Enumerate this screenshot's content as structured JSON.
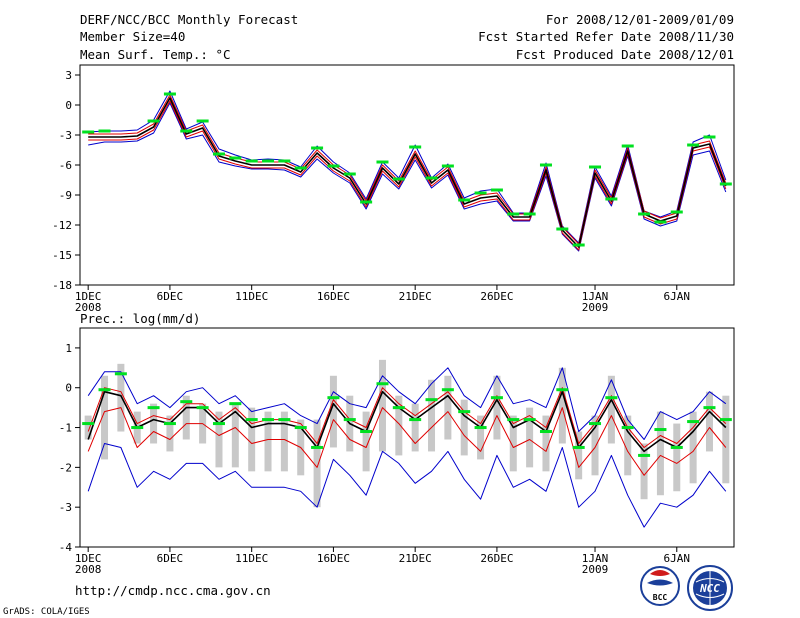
{
  "header": {
    "title": "DERF/NCC/BCC Monthly Forecast",
    "member_size": "Member Size=40",
    "period": "For 2008/12/01-2009/01/09",
    "start_date": "Fcst Started Refer Date 2008/11/30",
    "produced_date": "Fcst Produced Date 2008/12/01"
  },
  "footer": {
    "url": "http://cmdp.ncc.cma.gov.cn",
    "credit": "GrADS: COLA/IGES",
    "logo_bcc": "BCC",
    "logo_ncc": "NCC"
  },
  "colors": {
    "mean": "#000000",
    "spread": "#e00000",
    "extreme": "#0000cc",
    "member": "#00e020",
    "box": "#c8c8c8"
  },
  "chart_data": [
    {
      "type": "line",
      "title": "Mean Surf. Temp.: °C",
      "xlabel": "",
      "ylabel": "°C",
      "ylim": [
        -18,
        4
      ],
      "yticks": [
        3,
        0,
        -3,
        -6,
        -9,
        -12,
        -15,
        -18
      ],
      "xlim": [
        0.5,
        40.5
      ],
      "xticks": [
        {
          "day": 1,
          "label": "1DEC",
          "sub": "2008"
        },
        {
          "day": 6,
          "label": "6DEC"
        },
        {
          "day": 11,
          "label": "11DEC"
        },
        {
          "day": 16,
          "label": "16DEC"
        },
        {
          "day": 21,
          "label": "21DEC"
        },
        {
          "day": 26,
          "label": "26DEC"
        },
        {
          "day": 32,
          "label": "1JAN",
          "sub": "2009"
        },
        {
          "day": 37,
          "label": "6JAN"
        }
      ],
      "x": [
        1,
        2,
        3,
        4,
        5,
        6,
        7,
        8,
        9,
        10,
        11,
        12,
        13,
        14,
        15,
        16,
        17,
        18,
        19,
        20,
        21,
        22,
        23,
        24,
        25,
        26,
        27,
        28,
        29,
        30,
        31,
        32,
        33,
        34,
        35,
        36,
        37,
        38,
        39,
        40
      ],
      "series": [
        {
          "name": "ensemble mean",
          "role": "mean",
          "values": [
            -3.2,
            -3.2,
            -3.2,
            -3.1,
            -2.2,
            0.7,
            -2.9,
            -2.3,
            -5.1,
            -5.6,
            -6.0,
            -6.0,
            -6.0,
            -6.7,
            -4.8,
            -6.3,
            -7.3,
            -9.9,
            -6.3,
            -7.9,
            -4.9,
            -7.8,
            -6.5,
            -9.9,
            -9.3,
            -9.1,
            -11.2,
            -11.2,
            -6.5,
            -12.5,
            -14.2,
            -6.8,
            -9.6,
            -4.6,
            -10.9,
            -11.6,
            -11.1,
            -4.3,
            -3.9,
            -8.1
          ]
        },
        {
          "name": "mean + spread",
          "role": "spread",
          "values": [
            -2.9,
            -2.9,
            -2.9,
            -2.8,
            -1.9,
            1.0,
            -2.6,
            -2.0,
            -4.8,
            -5.3,
            -5.7,
            -5.7,
            -5.7,
            -6.4,
            -4.5,
            -6.0,
            -7.0,
            -9.6,
            -6.0,
            -7.6,
            -4.6,
            -7.5,
            -6.2,
            -9.6,
            -9.0,
            -8.8,
            -10.9,
            -10.9,
            -6.2,
            -12.2,
            -13.9,
            -6.5,
            -9.3,
            -4.3,
            -10.6,
            -11.3,
            -10.8,
            -4.0,
            -3.6,
            -7.8
          ]
        },
        {
          "name": "mean - spread",
          "role": "spread",
          "values": [
            -3.5,
            -3.5,
            -3.5,
            -3.4,
            -2.5,
            0.4,
            -3.2,
            -2.6,
            -5.4,
            -5.9,
            -6.3,
            -6.3,
            -6.3,
            -7.0,
            -5.1,
            -6.6,
            -7.6,
            -10.2,
            -6.6,
            -8.2,
            -5.2,
            -8.1,
            -6.8,
            -10.2,
            -9.6,
            -9.4,
            -11.5,
            -11.5,
            -6.8,
            -12.8,
            -14.5,
            -7.1,
            -9.9,
            -4.9,
            -11.2,
            -11.9,
            -11.4,
            -4.6,
            -4.2,
            -8.4
          ]
        },
        {
          "name": "ensemble max",
          "role": "extreme",
          "values": [
            -2.7,
            -2.6,
            -2.6,
            -2.5,
            -1.5,
            1.4,
            -2.4,
            -1.7,
            -4.4,
            -5.0,
            -5.5,
            -5.4,
            -5.5,
            -6.2,
            -4.1,
            -5.7,
            -6.8,
            -9.4,
            -5.7,
            -7.3,
            -4.0,
            -7.3,
            -5.9,
            -9.3,
            -8.6,
            -8.4,
            -10.8,
            -10.8,
            -5.8,
            -12.1,
            -13.8,
            -6.2,
            -9.1,
            -4.0,
            -10.6,
            -11.2,
            -10.6,
            -3.7,
            -3.0,
            -7.5
          ]
        },
        {
          "name": "ensemble min",
          "role": "extreme",
          "values": [
            -4.0,
            -3.7,
            -3.7,
            -3.6,
            -2.8,
            0.2,
            -3.4,
            -3.0,
            -5.7,
            -6.1,
            -6.4,
            -6.4,
            -6.5,
            -7.2,
            -5.4,
            -6.8,
            -7.8,
            -10.4,
            -6.9,
            -8.4,
            -5.5,
            -8.3,
            -7.0,
            -10.4,
            -9.9,
            -9.6,
            -11.6,
            -11.6,
            -7.1,
            -12.9,
            -14.6,
            -7.3,
            -10.1,
            -5.1,
            -11.4,
            -12.1,
            -11.6,
            -5.0,
            -4.6,
            -8.7
          ]
        },
        {
          "name": "member markers",
          "role": "member",
          "values": [
            -2.7,
            -2.6,
            null,
            null,
            -1.6,
            1.1,
            -2.6,
            -1.6,
            -4.9,
            -5.3,
            -5.6,
            -5.6,
            -5.6,
            -6.3,
            -4.3,
            -6.1,
            -6.9,
            -9.7,
            -5.7,
            -7.4,
            -4.2,
            -7.3,
            -6.1,
            -9.5,
            -8.8,
            -8.5,
            -10.9,
            -10.9,
            -6.0,
            -12.4,
            -14.0,
            -6.2,
            -9.4,
            -4.1,
            -10.9,
            -11.7,
            -10.7,
            -4.0,
            -3.2,
            -7.9
          ]
        }
      ]
    },
    {
      "type": "line",
      "title": "Prec.: log(mm/d)",
      "xlabel": "",
      "ylabel": "log(mm/d)",
      "ylim": [
        -4,
        1.5
      ],
      "yticks": [
        1,
        0,
        -1,
        -2,
        -3,
        -4
      ],
      "xlim": [
        0.5,
        40.5
      ],
      "xticks": [
        {
          "day": 1,
          "label": "1DEC",
          "sub": "2008"
        },
        {
          "day": 6,
          "label": "6DEC"
        },
        {
          "day": 11,
          "label": "11DEC"
        },
        {
          "day": 16,
          "label": "16DEC"
        },
        {
          "day": 21,
          "label": "21DEC"
        },
        {
          "day": 26,
          "label": "26DEC"
        },
        {
          "day": 32,
          "label": "1JAN",
          "sub": "2009"
        },
        {
          "day": 37,
          "label": "6JAN"
        }
      ],
      "x": [
        1,
        2,
        3,
        4,
        5,
        6,
        7,
        8,
        9,
        10,
        11,
        12,
        13,
        14,
        15,
        16,
        17,
        18,
        19,
        20,
        21,
        22,
        23,
        24,
        25,
        26,
        27,
        28,
        29,
        30,
        31,
        32,
        33,
        34,
        35,
        36,
        37,
        38,
        39,
        40
      ],
      "bars": {
        "name": "ensemble range",
        "high": [
          -0.7,
          0.3,
          0.6,
          -0.6,
          -0.4,
          -0.7,
          -0.2,
          -0.4,
          -0.6,
          -0.4,
          -0.5,
          -0.6,
          -0.6,
          -0.8,
          -0.8,
          0.3,
          -0.2,
          -0.6,
          0.7,
          -0.2,
          -0.4,
          0.2,
          0.3,
          -0.3,
          -0.7,
          0.3,
          -0.7,
          -0.5,
          -0.7,
          0.5,
          -1.1,
          -0.7,
          0.3,
          -0.7,
          -1.4,
          -0.6,
          -0.9,
          -0.6,
          -0.1,
          -0.2
        ],
        "low": [
          -1.3,
          -1.8,
          -1.1,
          -1.4,
          -1.4,
          -1.6,
          -1.3,
          -1.4,
          -2.0,
          -2.0,
          -2.1,
          -2.1,
          -2.1,
          -2.2,
          -3.0,
          -1.5,
          -1.6,
          -2.1,
          -1.6,
          -1.7,
          -1.6,
          -1.6,
          -1.3,
          -1.7,
          -1.8,
          -1.3,
          -2.1,
          -2.0,
          -2.1,
          -1.4,
          -2.3,
          -2.2,
          -1.4,
          -2.2,
          -2.8,
          -2.7,
          -2.6,
          -2.4,
          -1.6,
          -2.4
        ]
      },
      "series": [
        {
          "name": "ensemble mean",
          "role": "mean",
          "values": [
            -1.3,
            -0.1,
            -0.2,
            -1.0,
            -0.8,
            -0.9,
            -0.5,
            -0.5,
            -0.9,
            -0.6,
            -1.0,
            -0.9,
            -0.9,
            -1.0,
            -1.5,
            -0.4,
            -0.9,
            -1.1,
            -0.1,
            -0.5,
            -0.8,
            -0.5,
            -0.2,
            -0.7,
            -1.0,
            -0.3,
            -1.0,
            -0.8,
            -1.1,
            -0.1,
            -1.5,
            -1.0,
            -0.3,
            -1.1,
            -1.6,
            -1.3,
            -1.5,
            -1.1,
            -0.6,
            -1.0
          ]
        },
        {
          "name": "mean + spread",
          "role": "spread",
          "values": [
            -1.1,
            0.0,
            -0.1,
            -0.9,
            -0.7,
            -0.8,
            -0.4,
            -0.4,
            -0.8,
            -0.5,
            -0.9,
            -0.8,
            -0.8,
            -0.9,
            -1.4,
            -0.3,
            -0.8,
            -1.0,
            0.0,
            -0.4,
            -0.7,
            -0.4,
            -0.1,
            -0.6,
            -0.9,
            -0.2,
            -0.9,
            -0.7,
            -1.0,
            0.0,
            -1.4,
            -0.9,
            -0.2,
            -1.0,
            -1.5,
            -1.2,
            -1.4,
            -1.0,
            -0.5,
            -0.9
          ]
        },
        {
          "name": "mean - spread",
          "role": "spread",
          "values": [
            -1.6,
            -0.6,
            -0.5,
            -1.5,
            -1.1,
            -1.3,
            -0.9,
            -0.9,
            -1.2,
            -1.0,
            -1.4,
            -1.3,
            -1.3,
            -1.5,
            -2.0,
            -0.8,
            -1.3,
            -1.5,
            -0.5,
            -0.9,
            -1.4,
            -1.0,
            -0.6,
            -1.2,
            -1.6,
            -0.7,
            -1.5,
            -1.3,
            -1.6,
            -0.5,
            -2.0,
            -1.5,
            -0.7,
            -1.6,
            -2.2,
            -1.7,
            -1.9,
            -1.6,
            -1.0,
            -1.5
          ]
        },
        {
          "name": "ensemble max",
          "role": "extreme",
          "values": [
            -0.2,
            0.4,
            0.4,
            -0.4,
            -0.2,
            -0.5,
            -0.1,
            0.0,
            -0.4,
            -0.2,
            -0.6,
            -0.5,
            -0.4,
            -0.7,
            -0.9,
            -0.1,
            -0.4,
            -0.5,
            0.3,
            -0.1,
            -0.4,
            0.1,
            0.5,
            -0.2,
            -0.5,
            0.3,
            -0.4,
            -0.3,
            -0.5,
            0.5,
            -1.1,
            -0.7,
            0.2,
            -0.8,
            -1.3,
            -0.6,
            -0.8,
            -0.6,
            -0.1,
            -0.4
          ]
        },
        {
          "name": "ensemble min",
          "role": "extreme",
          "values": [
            -2.6,
            -1.4,
            -1.5,
            -2.5,
            -2.1,
            -2.3,
            -1.9,
            -1.9,
            -2.3,
            -2.1,
            -2.5,
            -2.5,
            -2.5,
            -2.6,
            -3.0,
            -1.8,
            -2.2,
            -2.7,
            -1.6,
            -1.9,
            -2.4,
            -2.1,
            -1.6,
            -2.3,
            -2.8,
            -1.7,
            -2.5,
            -2.3,
            -2.6,
            -1.5,
            -3.0,
            -2.6,
            -1.7,
            -2.7,
            -3.5,
            -2.9,
            -3.0,
            -2.7,
            -2.1,
            -2.6
          ]
        },
        {
          "name": "member markers",
          "role": "member",
          "values": [
            -0.9,
            -0.05,
            0.35,
            -1.0,
            -0.5,
            -0.9,
            -0.35,
            -0.5,
            -0.9,
            -0.4,
            -0.8,
            -0.8,
            -0.8,
            -1.0,
            -1.5,
            -0.25,
            -0.8,
            -1.1,
            0.1,
            -0.5,
            -0.8,
            -0.3,
            -0.05,
            -0.6,
            -1.0,
            -0.25,
            -0.8,
            -0.8,
            -1.1,
            -0.05,
            -1.5,
            -0.9,
            -0.25,
            -1.0,
            -1.7,
            -1.05,
            -1.5,
            -0.85,
            -0.5,
            -0.8
          ]
        }
      ]
    }
  ]
}
